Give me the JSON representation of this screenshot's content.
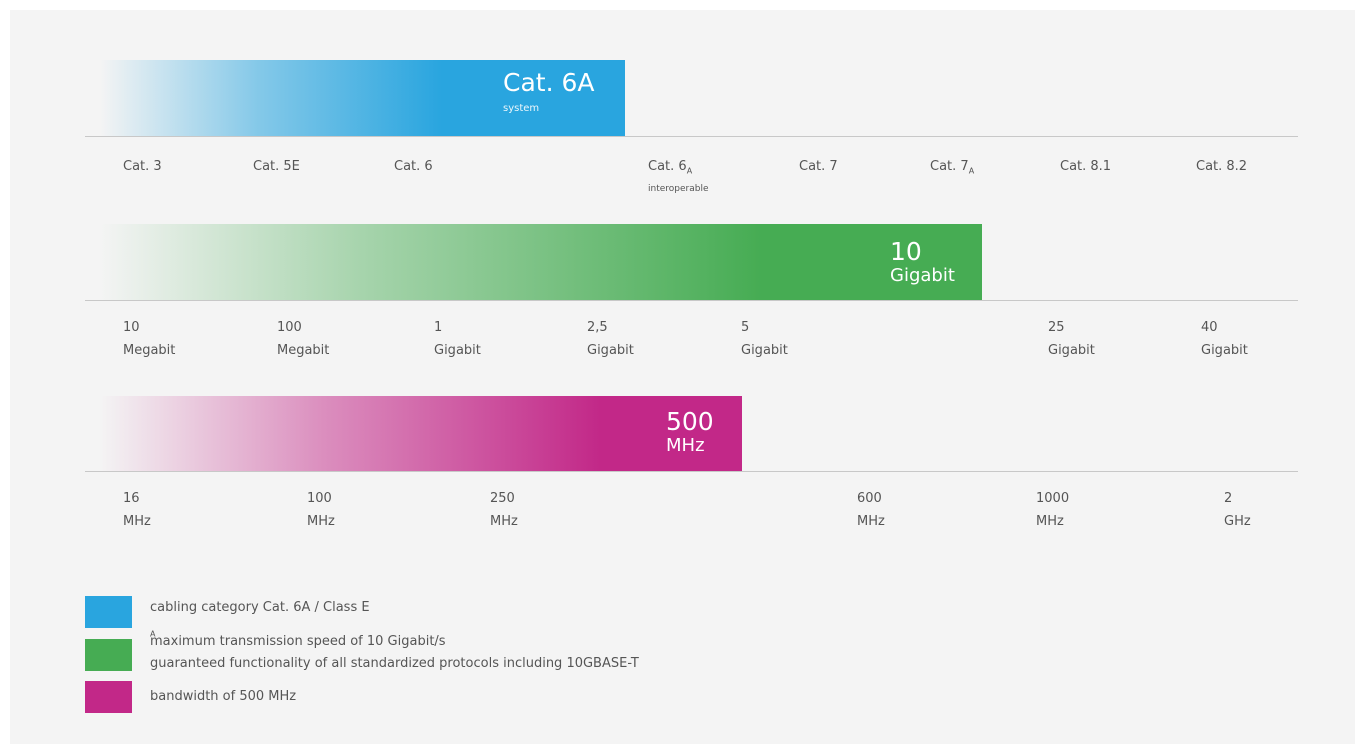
{
  "colors": {
    "blue": "#29a5df",
    "green": "#46ac53",
    "magenta": "#c22888",
    "background": "#f4f4f4",
    "axis": "#c8c8c8",
    "text": "#555555"
  },
  "bars": {
    "category": {
      "title": "Cat. 6A",
      "subtitle": "system"
    },
    "speed": {
      "line1": "10",
      "line2": "Gigabit"
    },
    "bandwidth": {
      "line1": "500",
      "line2": "MHz"
    }
  },
  "categories": [
    {
      "label": "Cat. 3"
    },
    {
      "label": "Cat. 5E"
    },
    {
      "label": "Cat. 6"
    },
    {
      "label": "Cat. 6",
      "sub": "A",
      "note": "interoperable"
    },
    {
      "label": "Cat. 7"
    },
    {
      "label": "Cat. 7",
      "sub": "A"
    },
    {
      "label": "Cat. 8.1"
    },
    {
      "label": "Cat. 8.2"
    }
  ],
  "speeds": [
    {
      "line1": "10",
      "line2": "Megabit"
    },
    {
      "line1": "100",
      "line2": "Megabit"
    },
    {
      "line1": "1",
      "line2": "Gigabit"
    },
    {
      "line1": "2,5",
      "line2": "Gigabit"
    },
    {
      "line1": "5",
      "line2": "Gigabit"
    },
    {
      "line1": "25",
      "line2": "Gigabit"
    },
    {
      "line1": "40",
      "line2": "Gigabit"
    }
  ],
  "frequencies": [
    {
      "line1": "16",
      "line2": "MHz"
    },
    {
      "line1": "100",
      "line2": "MHz"
    },
    {
      "line1": "250",
      "line2": "MHz"
    },
    {
      "line1": "600",
      "line2": "MHz"
    },
    {
      "line1": "1000",
      "line2": "MHz"
    },
    {
      "line1": "2",
      "line2": "GHz"
    }
  ],
  "legend": [
    {
      "text": "cabling category Cat. 6A / Class E",
      "sub": "A"
    },
    {
      "text": "maximum transmission speed of 10 Gigabit/s",
      "text2": "guaranteed functionality of all standardized protocols including 10GBASE-T"
    },
    {
      "text": "bandwidth of 500 MHz"
    }
  ]
}
